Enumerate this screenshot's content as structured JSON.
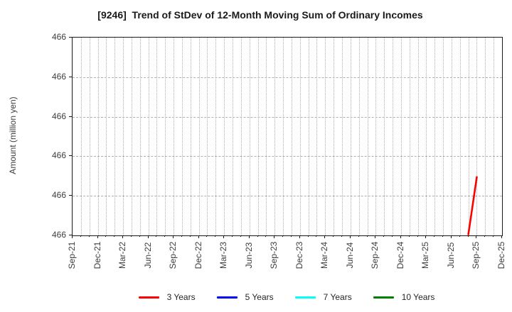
{
  "figure": {
    "title": "[9246]  Trend of StDev of 12-Month Moving Sum of Ordinary Incomes"
  },
  "y_axis": {
    "label": "Amount (million yen)",
    "tick_labels": [
      "466",
      "466",
      "466",
      "466",
      "466",
      "466"
    ]
  },
  "x_axis": {
    "tick_labels": [
      "Sep-21",
      "Dec-21",
      "Mar-22",
      "Jun-22",
      "Sep-22",
      "Dec-22",
      "Mar-23",
      "Jun-23",
      "Sep-23",
      "Dec-23",
      "Mar-24",
      "Jun-24",
      "Sep-24",
      "Dec-24",
      "Mar-25",
      "Jun-25",
      "Sep-25",
      "Dec-25"
    ],
    "months_per_tick": 3,
    "total_month_intervals": 51
  },
  "legend": {
    "items": [
      {
        "label": "3 Years",
        "color": "#ff0000"
      },
      {
        "label": "5 Years",
        "color": "#0000ff"
      },
      {
        "label": "7 Years",
        "color": "#00ffff"
      },
      {
        "label": "10 Years",
        "color": "#008000"
      }
    ]
  },
  "chart_data": {
    "type": "line",
    "title": "[9246]  Trend of StDev of 12-Month Moving Sum of Ordinary Incomes",
    "xlabel": "",
    "ylabel": "Amount (million yen)",
    "x_tick_labels": [
      "Sep-21",
      "Dec-21",
      "Mar-22",
      "Jun-22",
      "Sep-22",
      "Dec-22",
      "Mar-23",
      "Jun-23",
      "Sep-23",
      "Dec-23",
      "Mar-24",
      "Jun-24",
      "Sep-24",
      "Dec-24",
      "Mar-25",
      "Jun-25",
      "Sep-25",
      "Dec-25"
    ],
    "y_tick_labels": [
      "466",
      "466",
      "466",
      "466",
      "466",
      "466"
    ],
    "y_value_all_ticks": 466,
    "grid": true,
    "legend_position": "bottom",
    "series": [
      {
        "name": "3 Years",
        "color": "#ff0000",
        "note": "Only visible data: a short steep rising segment just before Sep-25; all y-axis ticks read 466 million yen",
        "points": [
          {
            "x": "Aug-25",
            "y": 466,
            "month_index": 47,
            "y_frac": 0.005
          },
          {
            "x": "Sep-25",
            "y": 466,
            "month_index": 48,
            "y_frac": 0.295
          }
        ]
      },
      {
        "name": "5 Years",
        "color": "#0000ff",
        "points": []
      },
      {
        "name": "7 Years",
        "color": "#00ffff",
        "points": []
      },
      {
        "name": "10 Years",
        "color": "#008000",
        "points": []
      }
    ]
  }
}
